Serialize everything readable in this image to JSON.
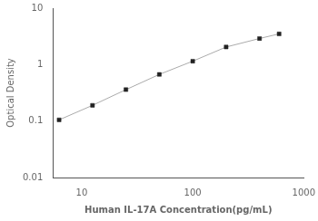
{
  "chart_data": {
    "type": "line",
    "x": [
      6.25,
      12.5,
      25,
      50,
      100,
      200,
      400,
      600
    ],
    "values": [
      0.105,
      0.19,
      0.36,
      0.67,
      1.15,
      2.05,
      2.9,
      3.5
    ],
    "xlabel": "Human IL-17A Concentration(pg/mL)",
    "ylabel": "Optical Density",
    "xlim": [
      5.5,
      1000
    ],
    "ylim": [
      0.01,
      10
    ],
    "xticks": [
      10,
      100,
      1000
    ],
    "yticks": [
      0.01,
      0.1,
      1,
      10
    ],
    "log": true,
    "grid": false,
    "color": "#aaaaaa",
    "marker": "square"
  }
}
